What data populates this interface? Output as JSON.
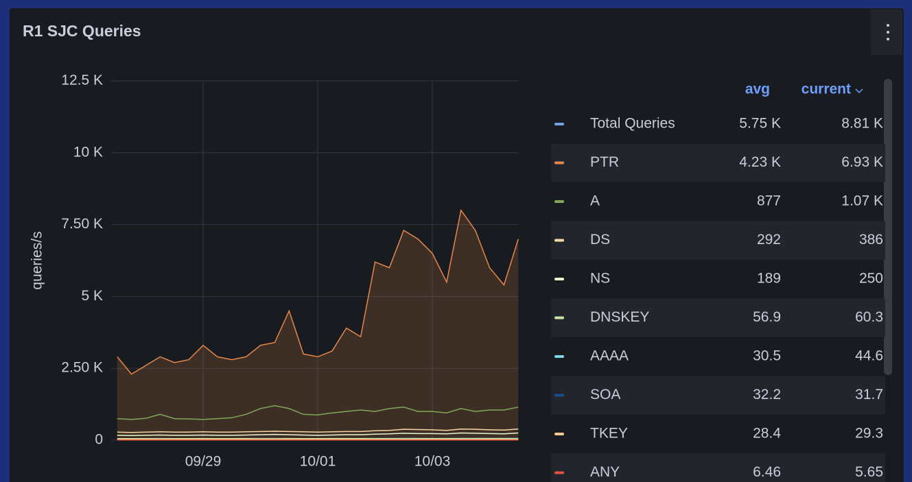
{
  "chart_data": {
    "type": "line",
    "title": "R1 SJC Queries",
    "ylabel": "queries/s",
    "categories": [
      null,
      null,
      null,
      null,
      null,
      null,
      "09/29",
      null,
      null,
      null,
      null,
      null,
      null,
      null,
      "10/01",
      null,
      null,
      null,
      null,
      null,
      null,
      null,
      "10/03",
      null,
      null,
      null,
      null,
      null,
      null
    ],
    "ylim": [
      0,
      12500
    ],
    "yticks": [
      0,
      {
        "value": 2500,
        "label": "2.50 K"
      },
      {
        "value": 5000,
        "label": "5 K"
      },
      {
        "value": 7500,
        "label": "7.50 K"
      },
      {
        "value": 10000,
        "label": "10 K"
      },
      {
        "value": 12500,
        "label": "12.5 K"
      }
    ],
    "grid": true,
    "legend": {
      "position": "right",
      "columns": [
        "avg",
        "current"
      ]
    },
    "series": [
      {
        "name": "Total Queries",
        "color": "#73a6e0",
        "avg": "5.75 K",
        "current": "8.81 K"
      },
      {
        "name": "PTR",
        "color": "#e8874a",
        "fill": true,
        "avg": "4.23 K",
        "current": "6.93 K",
        "values": [
          2900,
          2300,
          2600,
          2900,
          2700,
          2800,
          3300,
          2900,
          2800,
          2900,
          3300,
          3400,
          4500,
          3000,
          2900,
          3100,
          3900,
          3600,
          6200,
          6000,
          7300,
          7000,
          6500,
          5500,
          8000,
          7300,
          6000,
          5400,
          7000
        ]
      },
      {
        "name": "A",
        "color": "#7eab55",
        "avg": "877",
        "current": "1.07 K",
        "values": [
          750,
          720,
          760,
          900,
          750,
          740,
          720,
          750,
          780,
          900,
          1100,
          1200,
          1100,
          900,
          880,
          950,
          1000,
          1050,
          1000,
          1100,
          1150,
          1000,
          1000,
          950,
          1100,
          1000,
          1050,
          1050,
          1150
        ]
      },
      {
        "name": "DS",
        "color": "#fad9a0",
        "avg": "292",
        "current": "386",
        "values": [
          280,
          270,
          280,
          290,
          280,
          280,
          290,
          280,
          280,
          290,
          300,
          310,
          300,
          290,
          280,
          290,
          300,
          300,
          330,
          340,
          380,
          370,
          360,
          340,
          390,
          380,
          360,
          350,
          386
        ]
      },
      {
        "name": "NS",
        "color": "#eaf8d0",
        "avg": "189",
        "current": "250",
        "values": [
          170,
          160,
          170,
          180,
          170,
          170,
          180,
          170,
          170,
          180,
          190,
          200,
          190,
          180,
          170,
          180,
          190,
          190,
          210,
          220,
          240,
          230,
          230,
          220,
          250,
          240,
          230,
          220,
          250
        ]
      },
      {
        "name": "DNSKEY",
        "color": "#c8e6a8",
        "avg": "56.9",
        "current": "60.3",
        "values": [
          55,
          55,
          56,
          57,
          56,
          56,
          57,
          56,
          56,
          57,
          57,
          58,
          57,
          56,
          56,
          57,
          57,
          57,
          58,
          58,
          59,
          59,
          58,
          58,
          60,
          59,
          59,
          59,
          60
        ]
      },
      {
        "name": "AAAA",
        "color": "#7fd5e6",
        "avg": "30.5",
        "current": "44.6",
        "values": [
          28,
          27,
          28,
          29,
          28,
          28,
          29,
          28,
          28,
          29,
          30,
          31,
          30,
          29,
          28,
          29,
          30,
          30,
          33,
          34,
          38,
          37,
          36,
          34,
          40,
          38,
          36,
          35,
          45
        ]
      },
      {
        "name": "SOA",
        "color": "#1f4a8c",
        "avg": "32.2",
        "current": "31.7",
        "values": [
          32,
          32,
          32,
          33,
          32,
          32,
          32,
          32,
          32,
          32,
          33,
          33,
          32,
          32,
          32,
          32,
          32,
          32,
          32,
          32,
          33,
          32,
          32,
          32,
          32,
          32,
          32,
          32,
          32
        ]
      },
      {
        "name": "TKEY",
        "color": "#ffc890",
        "avg": "28.4",
        "current": "29.3",
        "values": [
          28,
          28,
          28,
          28,
          28,
          28,
          28,
          28,
          28,
          28,
          29,
          29,
          28,
          28,
          28,
          28,
          28,
          28,
          29,
          29,
          29,
          29,
          29,
          29,
          29,
          29,
          29,
          29,
          29
        ]
      },
      {
        "name": "ANY",
        "color": "#e0533e",
        "avg": "6.46",
        "current": "5.65",
        "values": [
          6,
          6,
          7,
          7,
          6,
          6,
          7,
          6,
          6,
          7,
          7,
          7,
          7,
          6,
          6,
          7,
          7,
          6,
          6,
          6,
          7,
          6,
          6,
          6,
          6,
          6,
          6,
          6,
          6
        ]
      }
    ]
  }
}
